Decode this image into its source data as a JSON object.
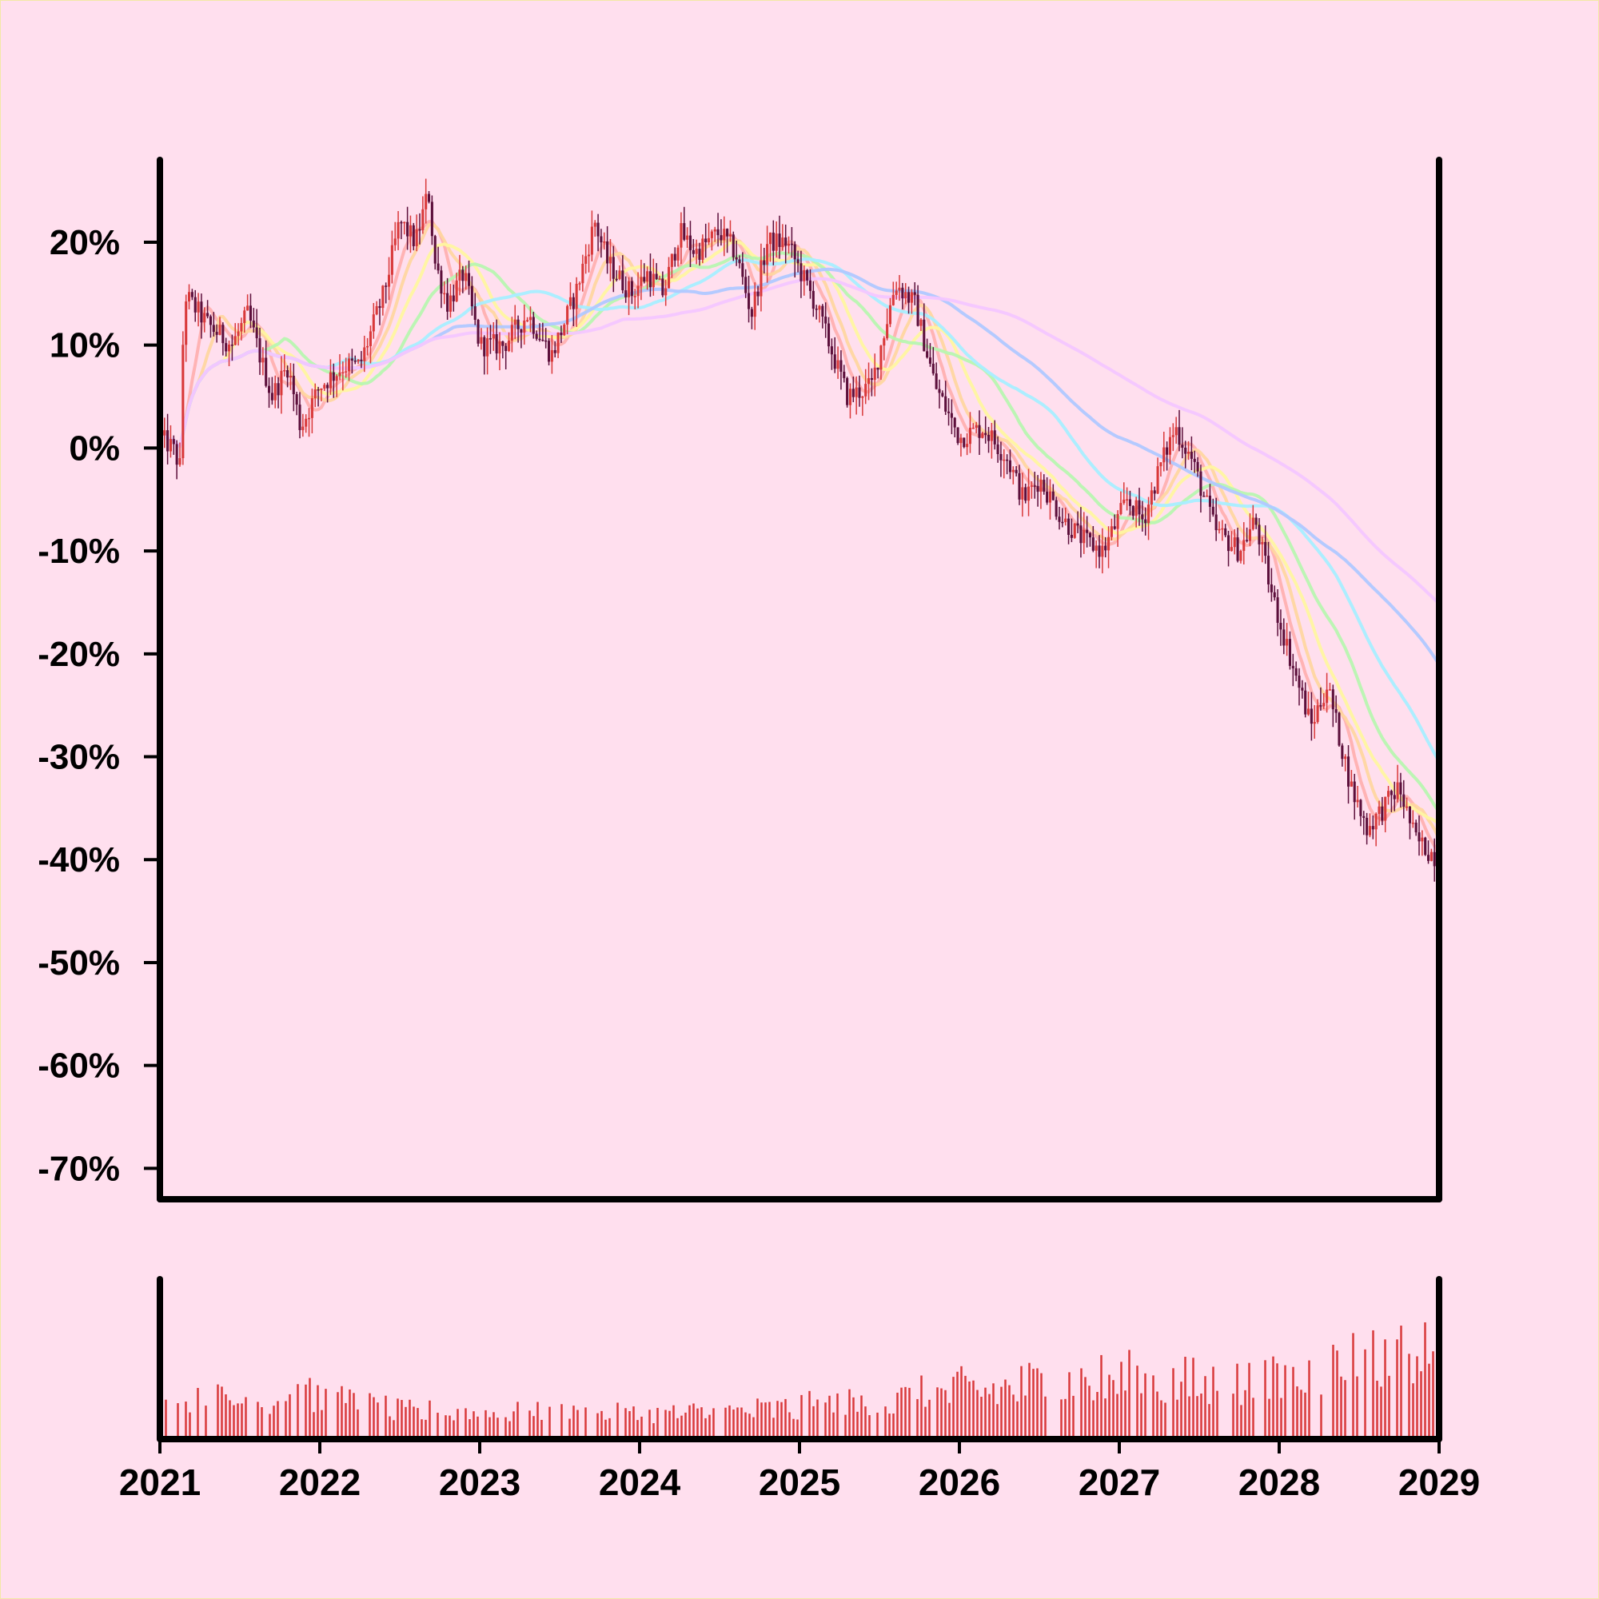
{
  "colors": {
    "background": "#ffdfee",
    "axis": "#000000",
    "candle_up": "#d9393a",
    "candle_down": "#5c0f3b",
    "volume": "#d9393a",
    "ma_colors": [
      "#ffb0b0",
      "#ffd6a0",
      "#fff5a0",
      "#b8f5b0",
      "#a8eeff",
      "#b0c8ff",
      "#f4c6ff"
    ]
  },
  "chart_data": [
    {
      "type": "candlestick",
      "x_unit": "year",
      "y_unit": "percent",
      "ylim": [
        -73,
        28
      ],
      "yticks": [
        20,
        10,
        0,
        -10,
        -20,
        -30,
        -40,
        -50,
        -60,
        -70
      ],
      "ytick_labels": [
        "20%",
        "10%",
        "0%",
        "-10%",
        "-20%",
        "-30%",
        "-40%",
        "-50%",
        "-60%",
        "-70%"
      ],
      "grid": false,
      "legend": "none",
      "close_path": [
        [
          2021.0,
          1
        ],
        [
          2021.08,
          0
        ],
        [
          2021.13,
          -2
        ],
        [
          2021.15,
          15
        ],
        [
          2021.3,
          12
        ],
        [
          2021.45,
          10
        ],
        [
          2021.55,
          13
        ],
        [
          2021.7,
          5
        ],
        [
          2021.8,
          8
        ],
        [
          2021.88,
          2
        ],
        [
          2022.0,
          6
        ],
        [
          2022.15,
          8
        ],
        [
          2022.25,
          8
        ],
        [
          2022.4,
          15
        ],
        [
          2022.5,
          22
        ],
        [
          2022.6,
          20
        ],
        [
          2022.68,
          25
        ],
        [
          2022.72,
          18
        ],
        [
          2022.8,
          14
        ],
        [
          2022.9,
          17
        ],
        [
          2023.0,
          10
        ],
        [
          2023.15,
          10
        ],
        [
          2023.3,
          13
        ],
        [
          2023.45,
          9
        ],
        [
          2023.6,
          15
        ],
        [
          2023.72,
          22
        ],
        [
          2023.8,
          18
        ],
        [
          2023.95,
          15
        ],
        [
          2024.05,
          17
        ],
        [
          2024.15,
          15
        ],
        [
          2024.25,
          21
        ],
        [
          2024.35,
          19
        ],
        [
          2024.5,
          21
        ],
        [
          2024.6,
          19
        ],
        [
          2024.7,
          13
        ],
        [
          2024.8,
          20
        ],
        [
          2024.92,
          20
        ],
        [
          2025.1,
          14
        ],
        [
          2025.3,
          5
        ],
        [
          2025.45,
          6
        ],
        [
          2025.6,
          16
        ],
        [
          2025.72,
          14
        ],
        [
          2025.85,
          6
        ],
        [
          2026.0,
          1
        ],
        [
          2026.15,
          2
        ],
        [
          2026.3,
          -1
        ],
        [
          2026.4,
          -5
        ],
        [
          2026.5,
          -3
        ],
        [
          2026.65,
          -7
        ],
        [
          2026.78,
          -9
        ],
        [
          2026.9,
          -10
        ],
        [
          2027.05,
          -5
        ],
        [
          2027.15,
          -7
        ],
        [
          2027.25,
          -2
        ],
        [
          2027.35,
          2
        ],
        [
          2027.45,
          -1
        ],
        [
          2027.6,
          -8
        ],
        [
          2027.75,
          -10
        ],
        [
          2027.85,
          -7
        ],
        [
          2027.95,
          -14
        ],
        [
          2028.1,
          -22
        ],
        [
          2028.2,
          -27
        ],
        [
          2028.3,
          -23
        ],
        [
          2028.45,
          -33
        ],
        [
          2028.55,
          -37
        ],
        [
          2028.65,
          -35
        ],
        [
          2028.75,
          -33
        ],
        [
          2028.85,
          -38
        ],
        [
          2029.0,
          -40
        ]
      ]
    },
    {
      "type": "bar",
      "x_unit": "year",
      "description_of_values": "volume, relative scale",
      "x_range": [
        2021,
        2029
      ],
      "volume_profile": [
        [
          2021.0,
          0.25
        ],
        [
          2021.5,
          0.34
        ],
        [
          2022.0,
          0.34
        ],
        [
          2022.5,
          0.22
        ],
        [
          2023.0,
          0.22
        ],
        [
          2023.5,
          0.2
        ],
        [
          2024.0,
          0.2
        ],
        [
          2024.5,
          0.22
        ],
        [
          2025.0,
          0.26
        ],
        [
          2025.5,
          0.3
        ],
        [
          2026.0,
          0.4
        ],
        [
          2026.5,
          0.46
        ],
        [
          2027.0,
          0.5
        ],
        [
          2027.5,
          0.46
        ],
        [
          2028.0,
          0.46
        ],
        [
          2028.5,
          0.65
        ],
        [
          2029.0,
          0.7
        ]
      ]
    }
  ],
  "x_axis": {
    "tick_labels": [
      "2021",
      "2022",
      "2023",
      "2024",
      "2025",
      "2026",
      "2027",
      "2028",
      "2029"
    ],
    "tick_values": [
      2021,
      2022,
      2023,
      2024,
      2025,
      2026,
      2027,
      2028,
      2029
    ]
  }
}
